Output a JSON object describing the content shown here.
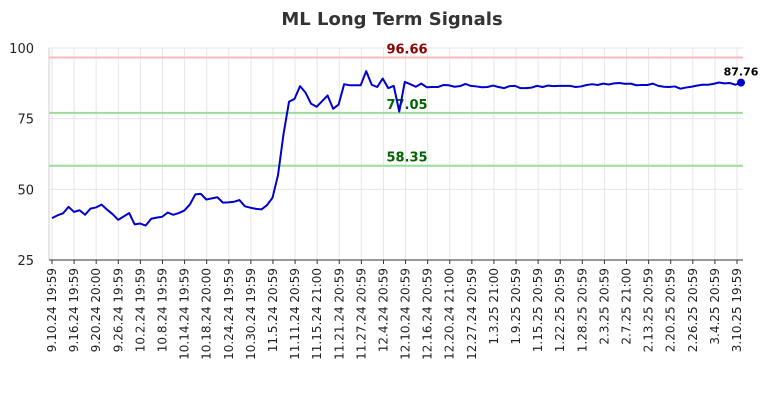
{
  "chart_data": {
    "type": "line",
    "title": "ML Long Term Signals",
    "xlabel": "",
    "ylabel": "",
    "ylim": [
      25,
      100
    ],
    "yticks": [
      25,
      50,
      75,
      100
    ],
    "grid": true,
    "x_tick_labels": [
      "9.10.24 19:59",
      "9.16.24 19:59",
      "9.20.24 20:00",
      "9.26.24 19:59",
      "10.2.24 19:59",
      "10.8.24 19:59",
      "10.14.24 19:59",
      "10.18.24 20:00",
      "10.24.24 19:59",
      "10.30.24 19:59",
      "11.5.24 20:59",
      "11.11.24 20:59",
      "11.15.24 21:00",
      "11.21.24 20:59",
      "11.27.24 20:59",
      "12.4.24 20:59",
      "12.10.24 20:59",
      "12.16.24 20:59",
      "12.20.24 21:00",
      "12.27.24 20:59",
      "1.3.25 21:00",
      "1.9.25 20:59",
      "1.15.25 20:59",
      "1.22.25 20:59",
      "1.28.25 20:59",
      "2.3.25 20:59",
      "2.7.25 21:00",
      "2.13.25 20:59",
      "2.20.25 20:59",
      "2.26.25 20:59",
      "3.4.25 20:59",
      "3.10.25 19:59"
    ],
    "reference_lines": [
      {
        "value": 96.66,
        "label": "96.66",
        "color": "#ffbbbb",
        "label_color": "#8b0000"
      },
      {
        "value": 77.05,
        "label": "77.05",
        "color": "#99dd99",
        "label_color": "#006400"
      },
      {
        "value": 58.35,
        "label": "58.35",
        "color": "#99dd99",
        "label_color": "#006400"
      }
    ],
    "series": [
      {
        "color": "#0000cc",
        "values": [
          39.8,
          40.8,
          41.5,
          43.8,
          42.0,
          42.6,
          41.0,
          43.2,
          43.6,
          44.6,
          42.8,
          41.2,
          39.2,
          40.4,
          41.6,
          37.6,
          37.9,
          37.2,
          39.6,
          40.0,
          40.3,
          41.8,
          41.0,
          41.6,
          42.5,
          44.6,
          48.2,
          48.4,
          46.4,
          46.8,
          47.2,
          45.3,
          45.4,
          45.6,
          46.2,
          44.0,
          43.5,
          43.1,
          42.9,
          44.4,
          47.0,
          55.0,
          69.5,
          81.0,
          82.0,
          86.5,
          84.2,
          80.3,
          79.2,
          81.2,
          83.2,
          78.5,
          80.0,
          87.2,
          86.8,
          86.8,
          86.8,
          91.8,
          87.0,
          86.2,
          89.2,
          85.8,
          86.6,
          77.5,
          88.0,
          87.2,
          86.3,
          87.4,
          86.1,
          86.2,
          86.2,
          86.9,
          86.8,
          86.3,
          86.5,
          87.3,
          86.6,
          86.4,
          86.1,
          86.2,
          86.7,
          86.2,
          85.8,
          86.5,
          86.6,
          85.8,
          85.8,
          86.0,
          86.6,
          86.2,
          86.7,
          86.5,
          86.6,
          86.6,
          86.6,
          86.2,
          86.4,
          86.9,
          87.2,
          86.9,
          87.4,
          87.1,
          87.5,
          87.6,
          87.3,
          87.4,
          86.8,
          86.9,
          86.9,
          87.4,
          86.6,
          86.3,
          86.2,
          86.4,
          85.6,
          86.0,
          86.3,
          86.7,
          87.0,
          87.0,
          87.3,
          87.8,
          87.5,
          87.6,
          87.0,
          87.76
        ],
        "last_label": "87.76"
      }
    ]
  }
}
